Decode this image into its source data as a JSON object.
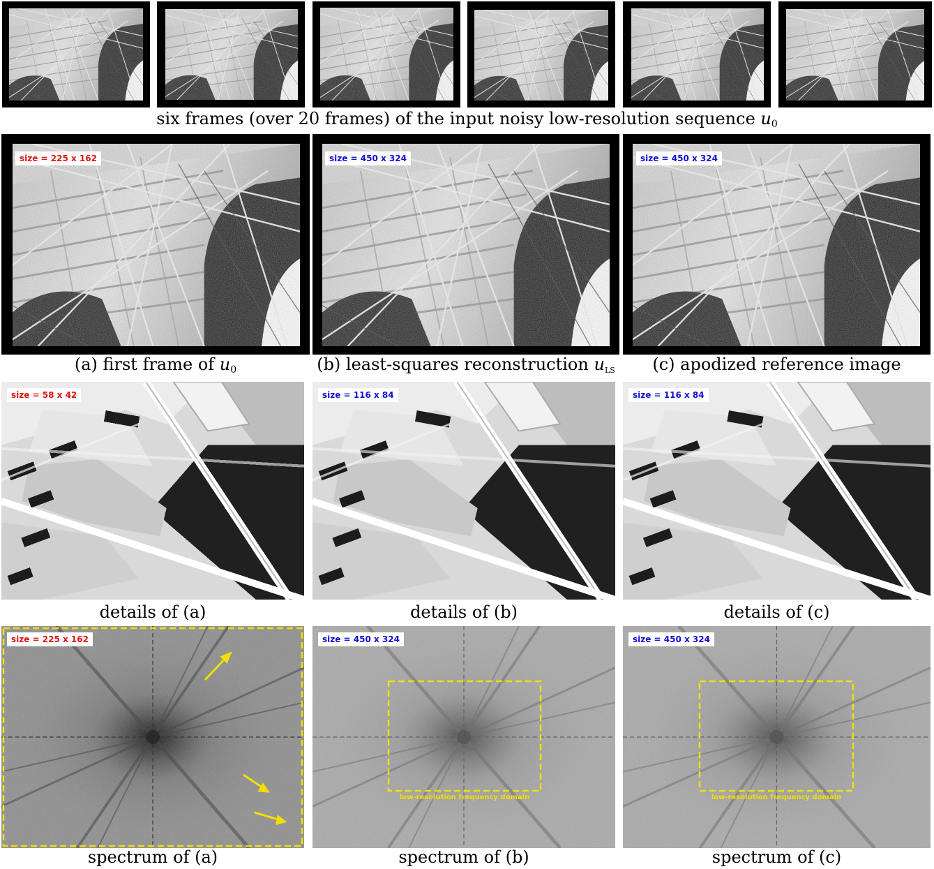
{
  "top_caption": {
    "text": "six frames (over 20 frames) of the input noisy low-resolution sequence ",
    "symbol": "u",
    "subscript": "0"
  },
  "row2": {
    "panels": [
      {
        "tag": "size = 225 x 162",
        "caption_text": "(a) first frame of ",
        "caption_symbol": "u",
        "caption_sub": "0"
      },
      {
        "tag": "size = 450 x 324",
        "caption_text": "(b) least-squares reconstruction ",
        "caption_symbol": "u",
        "caption_sub": "LS"
      },
      {
        "tag": "size = 450 x 324",
        "caption_text": "(c) apodized reference image"
      }
    ]
  },
  "row3": {
    "panels": [
      {
        "tag": "size = 58 x 42",
        "caption": "details of (a)"
      },
      {
        "tag": "size = 116 x 84",
        "caption": "details of (b)"
      },
      {
        "tag": "size = 116 x 84",
        "caption": "details of (c)"
      }
    ]
  },
  "row4": {
    "panels": [
      {
        "tag": "size = 225 x 162",
        "caption": "spectrum of (a)"
      },
      {
        "tag": "size = 450 x 324",
        "caption": "spectrum of (b)",
        "box_label": "low-resolution frequency domain"
      },
      {
        "tag": "size = 450 x 324",
        "caption": "spectrum of (c)",
        "box_label": "low-resolution frequency domain"
      }
    ]
  },
  "colors": {
    "tag_red": "#e01010",
    "tag_blue": "#1010d8",
    "highlight_yellow": "#f0e000"
  }
}
